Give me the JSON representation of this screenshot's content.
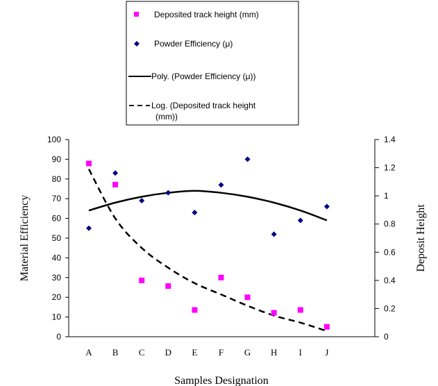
{
  "chart_data": {
    "type": "scatter",
    "categories": [
      "A",
      "B",
      "C",
      "D",
      "E",
      "F",
      "G",
      "H",
      "I",
      "J"
    ],
    "xlabel": "Samples Designation",
    "ylabel": "Material Efficiency",
    "y2label": "Deposit Height",
    "ylim": [
      0,
      100
    ],
    "y2lim": [
      0,
      1.4
    ],
    "yticks": [
      "0",
      "10",
      "20",
      "30",
      "40",
      "50",
      "60",
      "70",
      "80",
      "90",
      "100"
    ],
    "y2ticks": [
      "0",
      "0.2",
      "0.4",
      "0.6",
      "0.8",
      "1",
      "1.2",
      "1.4"
    ],
    "grid": false,
    "legend_position": "top",
    "series": [
      {
        "name": "Deposited track height (mm)",
        "marker": "square",
        "axis": "right",
        "color": "#ff00ff",
        "values": [
          1.23,
          1.08,
          0.4,
          0.36,
          0.19,
          0.42,
          0.28,
          0.17,
          0.19,
          0.07
        ]
      },
      {
        "name": "Powder Efficiency (μ)",
        "marker": "diamond",
        "axis": "left",
        "color": "#000080",
        "values": [
          55,
          83,
          69,
          73,
          63,
          77,
          90,
          52,
          59,
          66
        ]
      }
    ],
    "trendlines": [
      {
        "name": "Poly. (Powder Efficiency (μ))",
        "style": "solid",
        "axis": "left",
        "color": "#000000",
        "values": [
          64,
          68,
          71,
          73,
          74,
          73,
          71,
          68,
          64,
          59
        ]
      },
      {
        "name": "Log. (Deposited  track height (mm))",
        "name_lines": [
          "Log. (Deposited  track height",
          "(mm))"
        ],
        "style": "dashed",
        "axis": "right",
        "color": "#000000",
        "values": [
          1.19,
          0.84,
          0.63,
          0.49,
          0.38,
          0.3,
          0.22,
          0.15,
          0.1,
          0.04
        ]
      }
    ]
  }
}
